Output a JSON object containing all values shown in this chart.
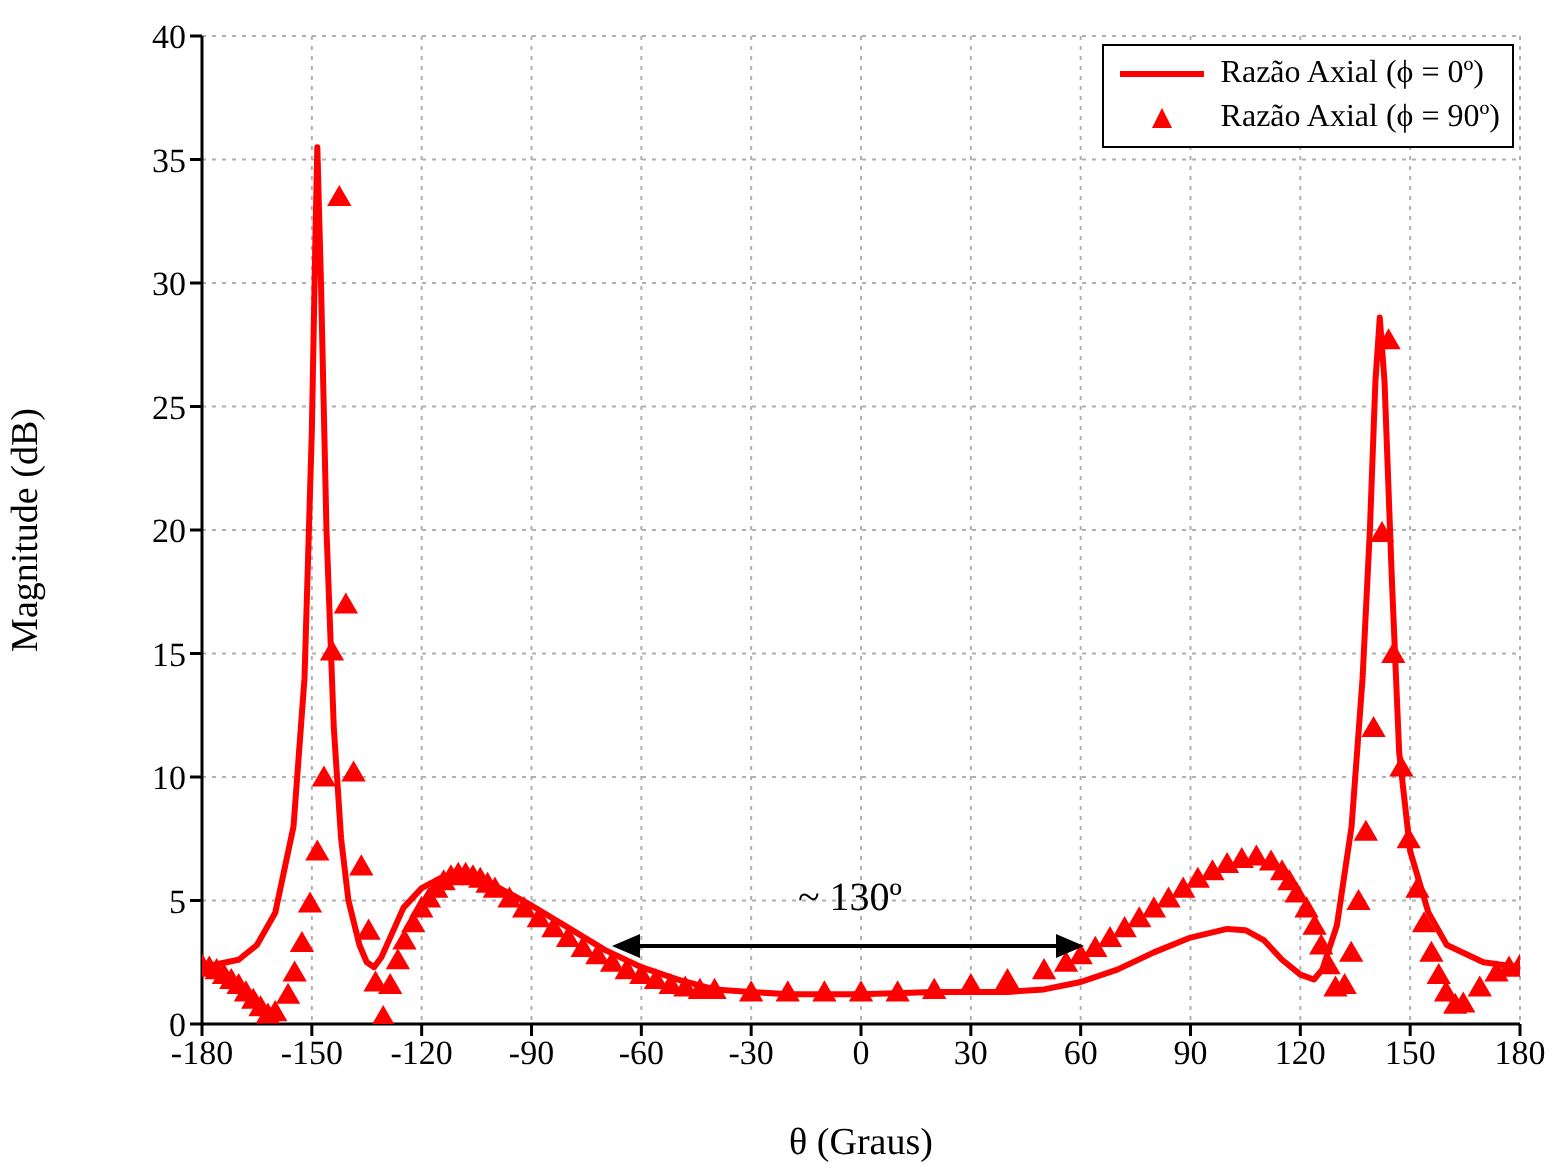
{
  "chart_data": {
    "type": "line",
    "xlabel": "θ (Graus)",
    "ylabel": "Magnitude (dB)",
    "xlim": [
      -180,
      180
    ],
    "xticks": [
      -180,
      -150,
      -120,
      -90,
      -60,
      -30,
      0,
      30,
      60,
      90,
      120,
      150,
      180
    ],
    "ylim": [
      0,
      40
    ],
    "yticks": [
      0,
      5,
      10,
      15,
      20,
      25,
      30,
      35,
      40
    ],
    "grid": true,
    "legend": "top right",
    "annotations": [
      "~ 130º"
    ],
    "series": [
      {
        "name": "Razão Axial (ϕ = 0º)",
        "color": "#ff0000",
        "marker": "none",
        "line_style": "solid",
        "x": [
          -180,
          -170,
          -165,
          -160,
          -155,
          -152,
          -150,
          -149,
          -148.5,
          -147.5,
          -146,
          -144,
          -142,
          -140,
          -137,
          -135,
          -133,
          -131,
          -128,
          -125,
          -120,
          -115,
          -110,
          -105,
          -100,
          -90,
          -80,
          -70,
          -60,
          -50,
          -40,
          -30,
          -20,
          0,
          20,
          40,
          50,
          60,
          70,
          80,
          90,
          100,
          105,
          110,
          115,
          120,
          123.7,
          126,
          130,
          134,
          137,
          139,
          140.5,
          141.7,
          143,
          145,
          147,
          150,
          155,
          160,
          170,
          180
        ],
        "values": [
          2.3,
          2.6,
          3.2,
          4.5,
          8,
          14,
          24,
          32,
          35.5,
          30,
          20,
          12,
          7.5,
          5,
          3.2,
          2.5,
          2.3,
          2.7,
          3.7,
          4.7,
          5.5,
          5.9,
          6.0,
          5.9,
          5.6,
          4.8,
          3.9,
          3.0,
          2.3,
          1.8,
          1.4,
          1.3,
          1.2,
          1.2,
          1.3,
          1.3,
          1.4,
          1.7,
          2.2,
          2.9,
          3.5,
          3.85,
          3.8,
          3.4,
          2.6,
          2.0,
          1.8,
          2.2,
          4,
          8,
          14,
          20,
          26,
          28.6,
          26,
          18,
          11,
          7,
          4.5,
          3.2,
          2.5,
          2.3
        ]
      },
      {
        "name": "Razão Axial (ϕ = 90º)",
        "type": "scatter",
        "color": "#ff0000",
        "marker": "triangle",
        "x": [
          -180,
          -178,
          -176,
          -174,
          -172,
          -170,
          -168,
          -166,
          -164,
          -162,
          -160,
          -156.5,
          -154.7,
          -152.7,
          -150.5,
          -148.5,
          -146.7,
          -144.5,
          -142.5,
          -140.7,
          -138.6,
          -136.5,
          -134.5,
          -132.6,
          -130.5,
          -128.6,
          -126.5,
          -124.7,
          -122.3,
          -120.1,
          -118,
          -116,
          -114,
          -112,
          -110,
          -108,
          -106,
          -104,
          -102,
          -100,
          -96,
          -92,
          -88,
          -84,
          -80,
          -76,
          -72,
          -68,
          -64,
          -60,
          -56,
          -52,
          -48,
          -44,
          -40,
          -30,
          -20,
          -10,
          0,
          10,
          20,
          30,
          40,
          50,
          56,
          60,
          64,
          68,
          72,
          76,
          80,
          84,
          88,
          92,
          96,
          100,
          104,
          108,
          112,
          115,
          117,
          119,
          121.7,
          123.9,
          125.7,
          127.7,
          129.6,
          132.1,
          133.9,
          135.9,
          137.9,
          140,
          142.3,
          144.1,
          145.4,
          147.6,
          149.6,
          152,
          153.8,
          155.8,
          157.8,
          159.8,
          162.3,
          164.5,
          169,
          173.6,
          177,
          180
        ],
        "values": [
          2.3,
          2.2,
          2.1,
          1.9,
          1.7,
          1.5,
          1.2,
          0.9,
          0.6,
          0.3,
          0.4,
          1.1,
          2.0,
          3.2,
          4.8,
          6.9,
          9.9,
          15.0,
          33.4,
          16.9,
          10.1,
          6.3,
          3.7,
          1.6,
          0.2,
          1.5,
          2.5,
          3.3,
          4.0,
          4.6,
          5.0,
          5.4,
          5.7,
          5.9,
          6.0,
          6.0,
          5.9,
          5.8,
          5.6,
          5.4,
          5.0,
          4.6,
          4.2,
          3.8,
          3.4,
          3.0,
          2.7,
          2.4,
          2.1,
          1.9,
          1.7,
          1.5,
          1.4,
          1.3,
          1.3,
          1.2,
          1.2,
          1.2,
          1.2,
          1.2,
          1.3,
          1.5,
          1.7,
          2.1,
          2.4,
          2.7,
          3.0,
          3.4,
          3.8,
          4.2,
          4.6,
          5.0,
          5.4,
          5.8,
          6.1,
          6.4,
          6.6,
          6.7,
          6.5,
          6.1,
          5.7,
          5.2,
          4.6,
          3.9,
          3.1,
          2.3,
          1.4,
          1.5,
          2.8,
          4.9,
          7.7,
          11.9,
          19.8,
          27.6,
          14.9,
          10.3,
          7.4,
          5.4,
          4.0,
          2.8,
          1.9,
          1.2,
          0.7,
          0.75,
          1.4,
          2.0,
          2.2,
          2.3
        ]
      }
    ]
  }
}
